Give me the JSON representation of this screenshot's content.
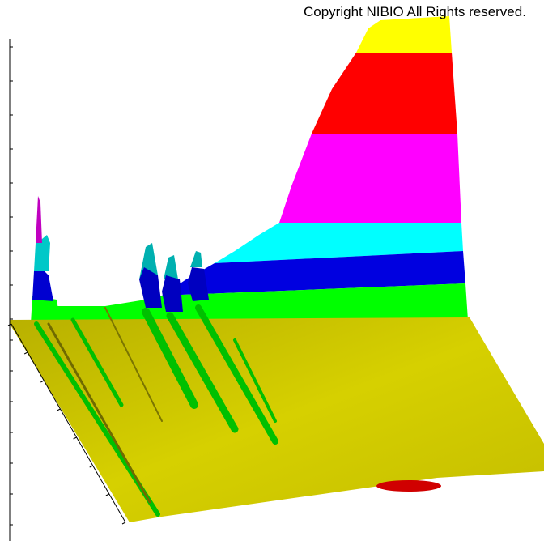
{
  "copyright": "Copyright NIBIO All Rights reserved."
}
